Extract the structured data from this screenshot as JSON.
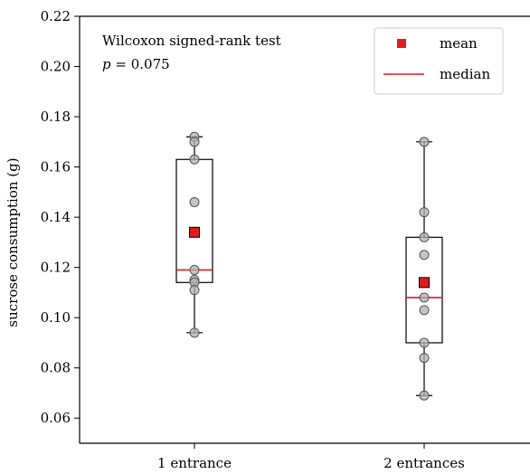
{
  "chart_data": {
    "type": "box",
    "categories": [
      "1 entrance",
      "2 entrances"
    ],
    "ylabel": "sucrose consumption (g)",
    "xlabel": "",
    "ylim": [
      0.05,
      0.22
    ],
    "yticks": [
      0.06,
      0.08,
      0.1,
      0.12,
      0.14,
      0.16,
      0.18,
      0.2,
      0.22
    ],
    "ytick_labels": [
      "0.06",
      "0.08",
      "0.10",
      "0.12",
      "0.14",
      "0.16",
      "0.18",
      "0.20",
      "0.22"
    ],
    "annotation": {
      "line1": "Wilcoxon signed-rank test",
      "p_symbol": "p",
      "p_rest": " = 0.075"
    },
    "legend": {
      "position": "upper right",
      "mean_label": "mean",
      "median_label": "median"
    },
    "colors": {
      "mean": "#dd1c1c",
      "median": "#dd1c1c",
      "point_fill": "#b0b0b0",
      "point_stroke": "#555555",
      "box": "#000000"
    },
    "groups": [
      {
        "name": "1 entrance",
        "points": [
          0.172,
          0.17,
          0.163,
          0.146,
          0.119,
          0.115,
          0.114,
          0.111,
          0.094
        ],
        "whisker_low": 0.094,
        "q1": 0.114,
        "median": 0.119,
        "q3": 0.163,
        "whisker_high": 0.172,
        "mean": 0.134
      },
      {
        "name": "2 entrances",
        "points": [
          0.17,
          0.142,
          0.132,
          0.125,
          0.108,
          0.103,
          0.09,
          0.084,
          0.069
        ],
        "whisker_low": 0.069,
        "q1": 0.09,
        "median": 0.108,
        "q3": 0.132,
        "whisker_high": 0.17,
        "mean": 0.114
      }
    ]
  }
}
